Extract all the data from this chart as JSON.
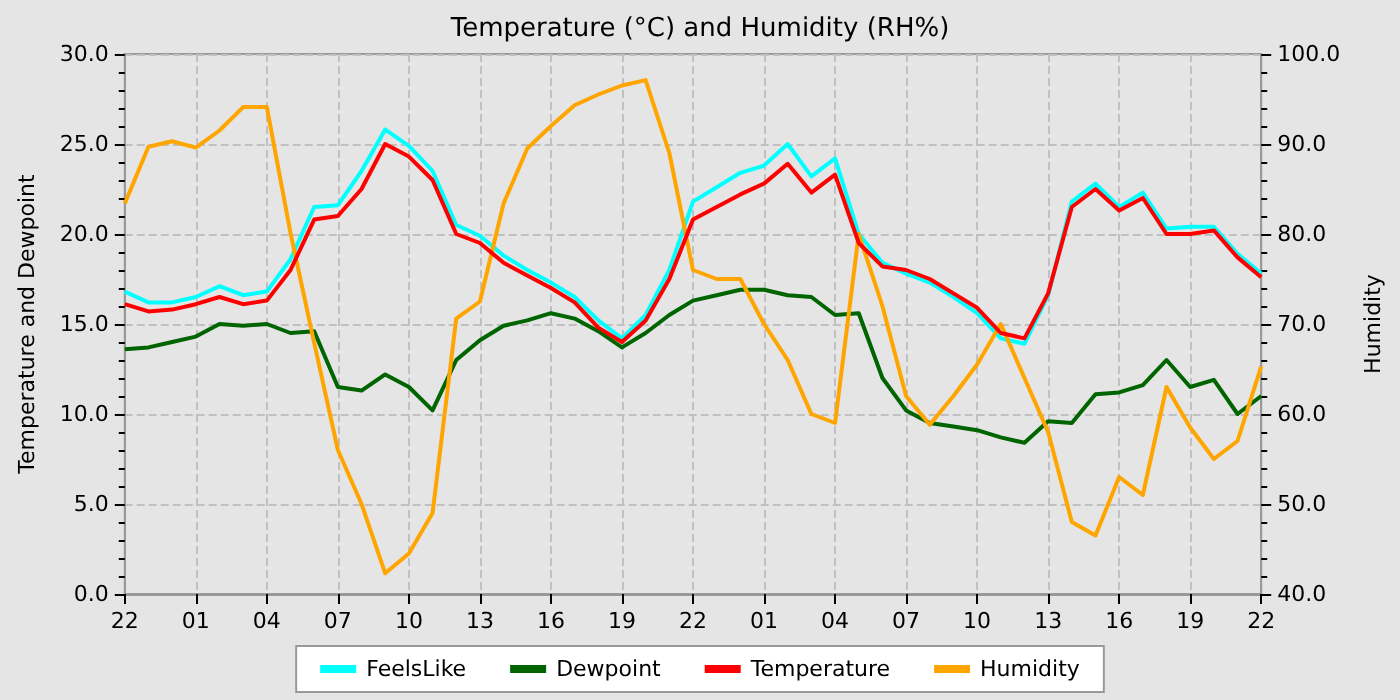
{
  "chart_data": {
    "type": "line",
    "title": "Temperature (°C) and Humidity (RH%)",
    "ylabel": "Temperature and Dewpoint",
    "y2label": "Humidity",
    "categories": [
      "22",
      null,
      null,
      "01",
      null,
      null,
      "04",
      null,
      null,
      "07",
      null,
      null,
      "10",
      null,
      null,
      "13",
      null,
      null,
      "16",
      null,
      null,
      "19",
      null,
      null,
      "22",
      null,
      null,
      "01",
      null,
      null,
      "04",
      null,
      null,
      "07",
      null,
      null,
      "10",
      null,
      null,
      "13",
      null,
      null,
      "16",
      null,
      null,
      "19",
      null,
      null,
      "22"
    ],
    "ylim": [
      0,
      30
    ],
    "yticks": [
      {
        "value": 0,
        "label": "0.0"
      },
      {
        "value": 5,
        "label": "5.0"
      },
      {
        "value": 10,
        "label": "10.0"
      },
      {
        "value": 15,
        "label": "15.0"
      },
      {
        "value": 20,
        "label": "20.0"
      },
      {
        "value": 25,
        "label": "25.0"
      },
      {
        "value": 30,
        "label": "30.0"
      }
    ],
    "y2lim": [
      40,
      100
    ],
    "y2ticks": [
      {
        "value": 40,
        "label": "40.0"
      },
      {
        "value": 50,
        "label": "50.0"
      },
      {
        "value": 60,
        "label": "60.0"
      },
      {
        "value": 70,
        "label": "70.0"
      },
      {
        "value": 80,
        "label": "80.0"
      },
      {
        "value": 90,
        "label": "90.0"
      },
      {
        "value": 100,
        "label": "100.0"
      }
    ],
    "grid": true,
    "legend": "bottom",
    "marker": "none",
    "line_style": "solid",
    "series": [
      {
        "name": "FeelsLike",
        "color": "#00ffff",
        "values": [
          16.8,
          16.2,
          16.2,
          16.5,
          17.1,
          16.6,
          16.8,
          18.6,
          21.5,
          21.6,
          23.5,
          25.8,
          24.9,
          23.5,
          20.5,
          19.9,
          18.8,
          18.0,
          17.3,
          16.5,
          15.2,
          14.2,
          15.5,
          18.0,
          21.8,
          22.6,
          23.4,
          23.8,
          25.0,
          23.2,
          24.2,
          20.0,
          18.4,
          17.8,
          17.3,
          16.5,
          15.6,
          14.2,
          13.9,
          16.6,
          21.8,
          22.8,
          21.5,
          22.3,
          20.3,
          20.4,
          20.4,
          18.9,
          17.8
        ]
      },
      {
        "name": "Dewpoint",
        "color": "#006400",
        "values": [
          13.6,
          13.7,
          14.0,
          14.3,
          15.0,
          14.9,
          15.0,
          14.5,
          14.6,
          11.5,
          11.3,
          12.2,
          11.5,
          10.2,
          13.0,
          14.1,
          14.9,
          15.2,
          15.6,
          15.3,
          14.6,
          13.7,
          14.5,
          15.5,
          16.3,
          16.6,
          16.9,
          16.9,
          16.6,
          16.5,
          15.5,
          15.6,
          12.0,
          10.2,
          9.5,
          9.3,
          9.1,
          8.7,
          8.4,
          9.6,
          9.5,
          11.1,
          11.2,
          11.6,
          13.0,
          11.5,
          11.9,
          10.0,
          11.0
        ]
      },
      {
        "name": "Temperature",
        "color": "#ff0000",
        "values": [
          16.1,
          15.7,
          15.8,
          16.1,
          16.5,
          16.1,
          16.3,
          18.0,
          20.8,
          21.0,
          22.5,
          25.0,
          24.3,
          23.0,
          20.0,
          19.5,
          18.4,
          17.7,
          17.0,
          16.2,
          14.8,
          14.0,
          15.2,
          17.5,
          20.8,
          21.5,
          22.2,
          22.8,
          23.9,
          22.3,
          23.3,
          19.5,
          18.2,
          18.0,
          17.5,
          16.7,
          15.9,
          14.5,
          14.2,
          16.7,
          21.5,
          22.5,
          21.3,
          22.0,
          20.0,
          20.0,
          20.2,
          18.7,
          17.6
        ]
      },
      {
        "name": "Humidity",
        "color": "#ffa500",
        "axis": "y2",
        "values": [
          83.4,
          89.7,
          90.3,
          89.6,
          91.5,
          94.1,
          94.1,
          80.1,
          67.9,
          56.0,
          50.0,
          42.3,
          44.5,
          49.0,
          70.6,
          72.5,
          83.4,
          89.5,
          92.0,
          94.3,
          95.5,
          96.5,
          97.1,
          89.0,
          76.0,
          75.0,
          75.0,
          70.0,
          66.0,
          60.0,
          59.0,
          80.0,
          72.0,
          62.0,
          58.8,
          62.0,
          65.5,
          70.0,
          64.0,
          58.0,
          48.0,
          46.5,
          53.0,
          51.0,
          63.0,
          58.5,
          55.0,
          57.0,
          65.3
        ]
      }
    ]
  }
}
